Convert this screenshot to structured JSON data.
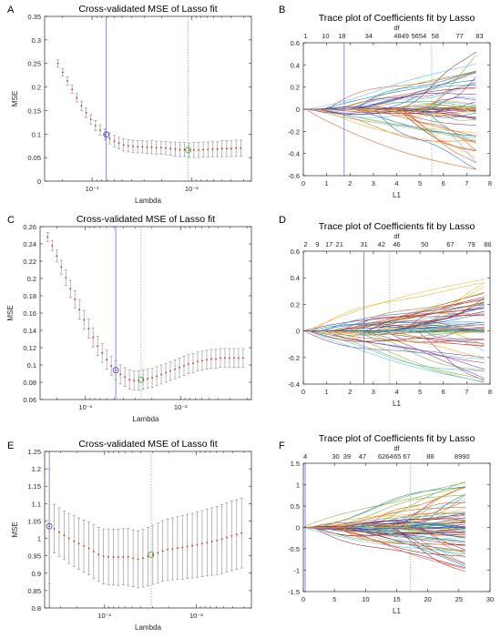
{
  "figure": {
    "panels": [
      {
        "letter": "A",
        "chart_type": "errorbar",
        "title": "Cross-validated MSE of Lasso fit",
        "xlabel": "Lambda",
        "ylabel": "MSE",
        "x_scale": "log",
        "x_direction": "reversed",
        "xlim": [
          0.3,
          0.0025
        ],
        "ylim": [
          0,
          0.35
        ],
        "yticks": [
          "0",
          "0.05",
          "0.1",
          "0.15",
          "0.2",
          "0.25",
          "0.3",
          "0.35"
        ],
        "xticks": [
          "10⁻¹",
          "10⁻²"
        ],
        "minlambda_x": 0.072,
        "onese_x": 0.0108,
        "points": {
          "lambda_start": 0.22,
          "lambda_end": 0.0032,
          "count": 40,
          "mean": [
            0.25,
            0.231,
            0.213,
            0.195,
            0.177,
            0.16,
            0.145,
            0.131,
            0.118,
            0.108,
            0.099,
            0.091,
            0.085,
            0.081,
            0.077,
            0.075,
            0.074,
            0.073,
            0.073,
            0.072,
            0.072,
            0.071,
            0.071,
            0.07,
            0.069,
            0.068,
            0.067,
            0.067,
            0.066,
            0.066,
            0.066,
            0.067,
            0.067,
            0.068,
            0.068,
            0.069,
            0.069,
            0.069,
            0.07,
            0.07
          ],
          "err": [
            0.008,
            0.008,
            0.009,
            0.009,
            0.009,
            0.01,
            0.01,
            0.01,
            0.011,
            0.011,
            0.012,
            0.012,
            0.012,
            0.012,
            0.013,
            0.013,
            0.013,
            0.013,
            0.013,
            0.013,
            0.014,
            0.014,
            0.014,
            0.014,
            0.014,
            0.015,
            0.015,
            0.015,
            0.015,
            0.016,
            0.016,
            0.016,
            0.016,
            0.016,
            0.016,
            0.017,
            0.017,
            0.017,
            0.017,
            0.017
          ]
        }
      },
      {
        "letter": "B",
        "chart_type": "trace",
        "title": "Trace plot of Coefficients fit by Lasso",
        "top_label": "df",
        "xlabel": "L1",
        "ylabel": "",
        "xlim": [
          0,
          8
        ],
        "ylim": [
          -0.6,
          0.6
        ],
        "xticks": [
          "0",
          "1",
          "2",
          "3",
          "4",
          "5",
          "6",
          "7",
          "8"
        ],
        "yticks": [
          "-0.6",
          "-0.4",
          "-0.2",
          "0",
          "0.2",
          "0.4",
          "0.6"
        ],
        "df_ticks": [
          {
            "x": 0.1,
            "t": "1"
          },
          {
            "x": 0.95,
            "t": "10"
          },
          {
            "x": 1.65,
            "t": "18"
          },
          {
            "x": 2.8,
            "t": "34"
          },
          {
            "x": 4.2,
            "t": "4849"
          },
          {
            "x": 4.95,
            "t": "5654"
          },
          {
            "x": 5.65,
            "t": "58"
          },
          {
            "x": 6.7,
            "t": "77"
          },
          {
            "x": 7.55,
            "t": "83"
          }
        ],
        "vline_blue": 1.75,
        "vline_green": 5.5,
        "x_end": 7.4,
        "n_lines": 60,
        "seed": 11,
        "spread": 0.55,
        "onset_span": 5.5
      },
      {
        "letter": "C",
        "chart_type": "errorbar",
        "title": "Cross-validated MSE of Lasso fit",
        "xlabel": "Lambda",
        "ylabel": "MSE",
        "x_scale": "log",
        "x_direction": "reversed",
        "xlim": [
          0.3,
          0.0018
        ],
        "ylim": [
          0.06,
          0.26
        ],
        "yticks": [
          "0.06",
          "0.08",
          "0.1",
          "0.12",
          "0.14",
          "0.16",
          "0.18",
          "0.2",
          "0.22",
          "0.24",
          "0.26"
        ],
        "xticks": [
          "10⁻¹",
          "10⁻²"
        ],
        "minlambda_x": 0.048,
        "onese_x": 0.026,
        "points": {
          "lambda_start": 0.25,
          "lambda_end": 0.0022,
          "count": 44,
          "mean": [
            0.248,
            0.238,
            0.226,
            0.213,
            0.201,
            0.188,
            0.176,
            0.164,
            0.152,
            0.142,
            0.132,
            0.122,
            0.114,
            0.106,
            0.099,
            0.094,
            0.089,
            0.086,
            0.083,
            0.082,
            0.082,
            0.083,
            0.084,
            0.085,
            0.087,
            0.089,
            0.091,
            0.093,
            0.095,
            0.097,
            0.099,
            0.101,
            0.102,
            0.104,
            0.105,
            0.106,
            0.107,
            0.107,
            0.108,
            0.108,
            0.108,
            0.108,
            0.108,
            0.108
          ],
          "err": [
            0.005,
            0.006,
            0.007,
            0.008,
            0.009,
            0.01,
            0.01,
            0.011,
            0.011,
            0.011,
            0.011,
            0.011,
            0.011,
            0.011,
            0.011,
            0.011,
            0.011,
            0.011,
            0.011,
            0.011,
            0.011,
            0.011,
            0.011,
            0.011,
            0.011,
            0.011,
            0.011,
            0.011,
            0.011,
            0.011,
            0.011,
            0.011,
            0.011,
            0.011,
            0.011,
            0.011,
            0.011,
            0.011,
            0.011,
            0.011,
            0.011,
            0.011,
            0.011,
            0.011
          ]
        }
      },
      {
        "letter": "D",
        "chart_type": "trace",
        "title": "Trace plot of Coefficients fit by Lasso",
        "top_label": "df",
        "xlabel": "L1",
        "ylabel": "",
        "xlim": [
          0,
          8
        ],
        "ylim": [
          -0.4,
          0.6
        ],
        "xticks": [
          "0",
          "1",
          "2",
          "3",
          "4",
          "5",
          "6",
          "7",
          "8"
        ],
        "yticks": [
          "-0.4",
          "-0.2",
          "0",
          "0.2",
          "0.4",
          "0.6"
        ],
        "df_ticks": [
          {
            "x": 0.1,
            "t": "2"
          },
          {
            "x": 0.6,
            "t": "9"
          },
          {
            "x": 1.1,
            "t": "17"
          },
          {
            "x": 1.55,
            "t": "21"
          },
          {
            "x": 2.6,
            "t": "31"
          },
          {
            "x": 3.35,
            "t": "42"
          },
          {
            "x": 4.0,
            "t": "46"
          },
          {
            "x": 5.2,
            "t": "50"
          },
          {
            "x": 6.3,
            "t": "67"
          },
          {
            "x": 7.2,
            "t": "79"
          },
          {
            "x": 7.9,
            "t": "86"
          }
        ],
        "vline_blue": 2.6,
        "vline_green": 3.7,
        "x_end": 7.75,
        "n_lines": 65,
        "seed": 29,
        "spread": 0.4,
        "onset_span": 5.5
      },
      {
        "letter": "E",
        "chart_type": "errorbar",
        "title": "Cross-validated MSE of Lasso fit",
        "xlabel": "Lambda",
        "ylabel": "MSE",
        "x_scale": "log",
        "x_direction": "reversed",
        "xlim": [
          0.45,
          0.0025
        ],
        "ylim": [
          0.8,
          1.25
        ],
        "yticks": [
          "0.8",
          "0.85",
          "0.9",
          "0.95",
          "1",
          "1.05",
          "1.1",
          "1.15",
          "1.2",
          "1.25"
        ],
        "xticks": [
          "10⁻¹",
          "10⁻²"
        ],
        "minlambda_x": 0.4,
        "onese_x": 0.031,
        "points": {
          "lambda_start": 0.4,
          "lambda_end": 0.0032,
          "count": 40,
          "mean": [
            1.035,
            1.028,
            1.018,
            1.009,
            1.0,
            0.992,
            0.985,
            0.978,
            0.971,
            0.962,
            0.954,
            0.948,
            0.947,
            0.946,
            0.946,
            0.947,
            0.947,
            0.943,
            0.94,
            0.943,
            0.948,
            0.953,
            0.958,
            0.964,
            0.968,
            0.97,
            0.972,
            0.974,
            0.977,
            0.979,
            0.982,
            0.985,
            0.988,
            0.991,
            0.994,
            0.998,
            1.003,
            1.007,
            1.011,
            1.015
          ],
          "err": [
            0.165,
            0.07,
            0.07,
            0.07,
            0.072,
            0.073,
            0.074,
            0.075,
            0.076,
            0.077,
            0.078,
            0.079,
            0.08,
            0.08,
            0.081,
            0.081,
            0.082,
            0.082,
            0.082,
            0.083,
            0.084,
            0.085,
            0.086,
            0.087,
            0.088,
            0.089,
            0.09,
            0.091,
            0.092,
            0.093,
            0.094,
            0.095,
            0.096,
            0.097,
            0.098,
            0.099,
            0.099,
            0.1,
            0.1,
            0.1
          ]
        }
      },
      {
        "letter": "F",
        "chart_type": "trace",
        "title": "Trace plot of Coefficients fit by Lasso",
        "top_label": "df",
        "xlabel": "L1",
        "ylabel": "",
        "xlim": [
          0,
          30
        ],
        "ylim": [
          -1.5,
          1.5
        ],
        "xticks": [
          "0",
          "5",
          "10",
          "15",
          "20",
          "25",
          "30"
        ],
        "yticks": [
          "-1.5",
          "-1",
          "-0.5",
          "0",
          "0.5",
          "1",
          "1.5"
        ],
        "df_ticks": [
          {
            "x": 0.3,
            "t": "4"
          },
          {
            "x": 5.2,
            "t": "30"
          },
          {
            "x": 7.0,
            "t": "39"
          },
          {
            "x": 9.5,
            "t": "47"
          },
          {
            "x": 13.2,
            "t": "6264"
          },
          {
            "x": 15.1,
            "t": "65"
          },
          {
            "x": 16.6,
            "t": "67"
          },
          {
            "x": 20.4,
            "t": "88"
          },
          {
            "x": 25.5,
            "t": "8990"
          }
        ],
        "vline_blue": 0.3,
        "vline_green": 17.2,
        "x_end": 26,
        "n_lines": 80,
        "seed": 47,
        "spread": 1.15,
        "onset_span": 18
      }
    ]
  },
  "chart_data": [
    {
      "type": "line",
      "panel": "A",
      "title": "Cross-validated MSE of Lasso fit",
      "xlabel": "Lambda",
      "ylabel": "MSE",
      "x_scale": "log",
      "ylim": [
        0,
        0.35
      ],
      "min_mse": 0.066,
      "min_lambda_marker": 0.072,
      "onese_lambda_marker": 0.0108
    },
    {
      "type": "line",
      "panel": "B",
      "title": "Trace plot of Coefficients fit by Lasso",
      "xlabel": "L1",
      "ylabel": "",
      "xlim": [
        0,
        8
      ],
      "ylim": [
        -0.6,
        0.6
      ],
      "df_labels": [
        "1",
        "10",
        "18",
        "34",
        "4849",
        "5654",
        "58",
        "77",
        "83"
      ]
    },
    {
      "type": "line",
      "panel": "C",
      "title": "Cross-validated MSE of Lasso fit",
      "xlabel": "Lambda",
      "ylabel": "MSE",
      "x_scale": "log",
      "ylim": [
        0.06,
        0.26
      ],
      "min_mse": 0.082,
      "min_lambda_marker": 0.048,
      "onese_lambda_marker": 0.026
    },
    {
      "type": "line",
      "panel": "D",
      "title": "Trace plot of Coefficients fit by Lasso",
      "xlabel": "L1",
      "ylabel": "",
      "xlim": [
        0,
        8
      ],
      "ylim": [
        -0.4,
        0.6
      ],
      "df_labels": [
        "2",
        "9",
        "17",
        "21",
        "31",
        "42",
        "46",
        "50",
        "67",
        "79",
        "86"
      ]
    },
    {
      "type": "line",
      "panel": "E",
      "title": "Cross-validated MSE of Lasso fit",
      "xlabel": "Lambda",
      "ylabel": "MSE",
      "x_scale": "log",
      "ylim": [
        0.8,
        1.25
      ],
      "min_mse": 0.94,
      "min_lambda_marker": 0.4,
      "onese_lambda_marker": 0.031
    },
    {
      "type": "line",
      "panel": "F",
      "title": "Trace plot of Coefficients fit by Lasso",
      "xlabel": "L1",
      "ylabel": "",
      "xlim": [
        0,
        30
      ],
      "ylim": [
        -1.5,
        1.5
      ],
      "df_labels": [
        "4",
        "30",
        "39",
        "47",
        "6264",
        "65",
        "67",
        "88",
        "8990"
      ]
    }
  ]
}
